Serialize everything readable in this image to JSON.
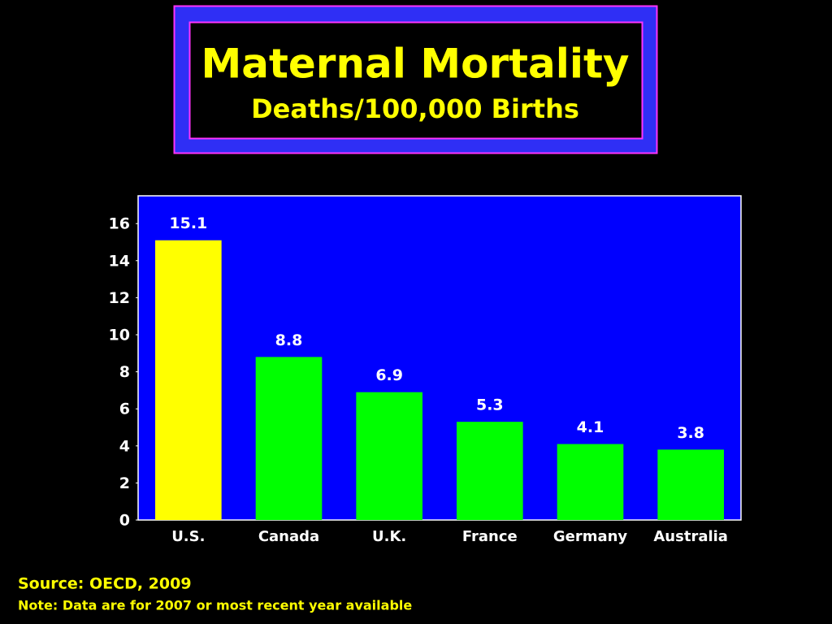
{
  "chart_data": {
    "type": "bar",
    "title": "Maternal Mortality",
    "subtitle": "Deaths/100,000 Births",
    "categories": [
      "U.S.",
      "Canada",
      "U.K.",
      "France",
      "Germany",
      "Australia"
    ],
    "values": [
      15.1,
      8.8,
      6.9,
      5.3,
      4.1,
      3.8
    ],
    "colors": [
      "#ffff00",
      "#00ff00",
      "#00ff00",
      "#00ff00",
      "#00ff00",
      "#00ff00"
    ],
    "ylim": [
      0,
      17.5
    ],
    "yticks": [
      0,
      2,
      4,
      6,
      8,
      10,
      12,
      14,
      16
    ],
    "grid": false,
    "source": "Source: OECD, 2009",
    "note": "Note: Data are for 2007 or most recent year available"
  }
}
